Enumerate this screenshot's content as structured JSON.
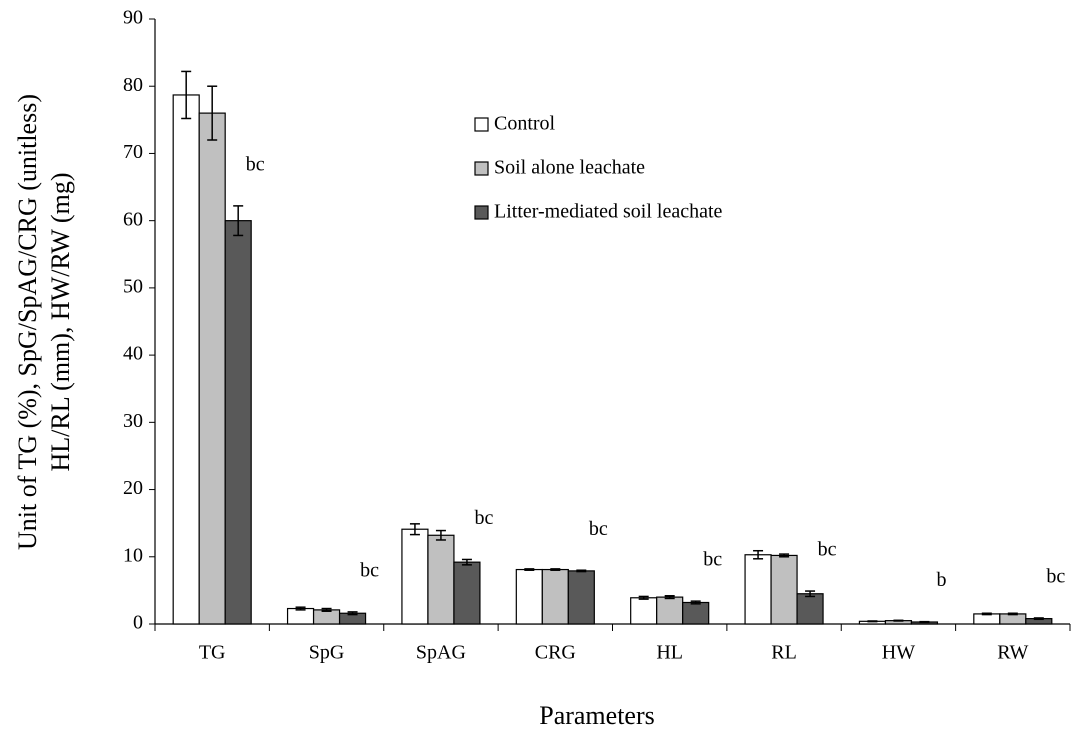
{
  "chart_data": {
    "type": "bar",
    "x_label": "Parameters",
    "y_label": [
      "Unit of TG (%), SpG/SpAG/CRG (unitless)",
      "HL/RL (mm), HW/RW (mg)"
    ],
    "categories": [
      "TG",
      "SpG",
      "SpAG",
      "CRG",
      "HL",
      "RL",
      "HW",
      "RW"
    ],
    "series": [
      {
        "name": "Control",
        "color": "#ffffff",
        "values": [
          78.7,
          2.3,
          14.1,
          8.1,
          3.9,
          10.3,
          0.4,
          1.5
        ],
        "errors": [
          3.5,
          0.2,
          0.8,
          0.1,
          0.2,
          0.6,
          0.05,
          0.1
        ]
      },
      {
        "name": "Soil alone leachate",
        "color": "#c0c0c0",
        "values": [
          76.0,
          2.1,
          13.2,
          8.1,
          4.0,
          10.2,
          0.5,
          1.5
        ],
        "errors": [
          4.0,
          0.2,
          0.7,
          0.1,
          0.2,
          0.2,
          0.05,
          0.1
        ]
      },
      {
        "name": "Litter-mediated soil leachate",
        "color": "#595959",
        "values": [
          60.0,
          1.6,
          9.2,
          7.9,
          3.2,
          4.5,
          0.3,
          0.8
        ],
        "errors": [
          2.2,
          0.2,
          0.4,
          0.1,
          0.2,
          0.4,
          0.05,
          0.1
        ]
      }
    ],
    "annotations": [
      "bc",
      "bc",
      "bc",
      "bc",
      "bc",
      "bc",
      "b",
      "bc"
    ],
    "ylim": [
      0,
      90
    ],
    "yticks": [
      0,
      10,
      20,
      30,
      40,
      50,
      60,
      70,
      80,
      90
    ],
    "grid": false
  }
}
